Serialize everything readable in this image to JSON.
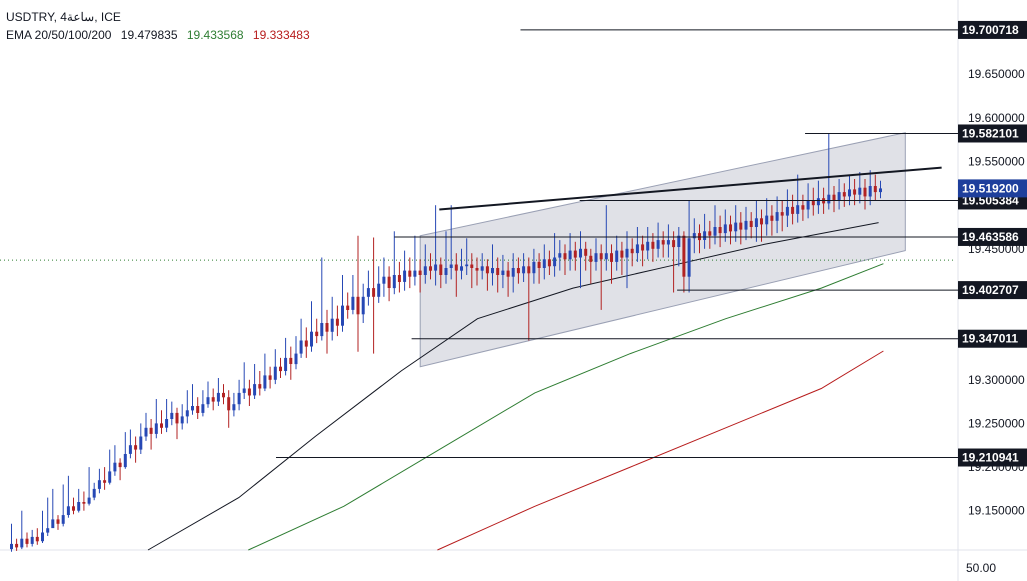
{
  "header": {
    "symbol_line": "USDTRY, 4ساعة, ICE",
    "ema_label": "EMA 20/50/100/200",
    "ema_values": [
      {
        "value": "19.479835",
        "color": "#131722"
      },
      {
        "value": "19.433568",
        "color": "#2e7d32"
      },
      {
        "value": "19.333483",
        "color": "#b71c1c"
      }
    ]
  },
  "bottom_axis": {
    "label": "50.00"
  },
  "chart_data": {
    "type": "candlestick",
    "symbol": "USDTRY",
    "timeframe": "4ساعة",
    "y_range": [
      19.105,
      19.735
    ],
    "y_ticks": [
      {
        "value": 19.65,
        "label": "19.650000"
      },
      {
        "value": 19.6,
        "label": "19.600000"
      },
      {
        "value": 19.55,
        "label": "19.550000"
      },
      {
        "value": 19.45,
        "label": "19.450000"
      },
      {
        "value": 19.3,
        "label": "19.300000"
      },
      {
        "value": 19.25,
        "label": "19.250000"
      },
      {
        "value": 19.2,
        "label": "19.200000"
      },
      {
        "value": 19.15,
        "label": "19.150000"
      }
    ],
    "horizontal_levels": [
      {
        "value": 19.700718,
        "label": "19.700718",
        "x_start_frac": 0.545
      },
      {
        "value": 19.582101,
        "label": "19.582101",
        "x_start_frac": 0.843
      },
      {
        "value": 19.505384,
        "label": "19.505384",
        "x_start_frac": 0.607
      },
      {
        "value": 19.463586,
        "label": "19.463586",
        "x_start_frac": 0.413
      },
      {
        "value": 19.402707,
        "label": "19.402707",
        "x_start_frac": 0.709
      },
      {
        "value": 19.347011,
        "label": "19.347011",
        "x_start_frac": 0.431
      },
      {
        "value": 19.210941,
        "label": "19.210941",
        "x_start_frac": 0.289
      }
    ],
    "current_price": {
      "value": 19.5192,
      "label": "19.519200",
      "color": "#1e3f9c"
    },
    "dotted_level": 19.437,
    "ema_series": [
      {
        "name": "EMA 20",
        "color": "#131722",
        "points": [
          [
            0.155,
            19.105
          ],
          [
            0.25,
            19.165
          ],
          [
            0.33,
            19.235
          ],
          [
            0.42,
            19.31
          ],
          [
            0.5,
            19.37
          ],
          [
            0.6,
            19.405
          ],
          [
            0.7,
            19.43
          ],
          [
            0.8,
            19.455
          ],
          [
            0.92,
            19.48
          ]
        ]
      },
      {
        "name": "EMA 50",
        "color": "#2e7d32",
        "points": [
          [
            0.26,
            19.105
          ],
          [
            0.36,
            19.155
          ],
          [
            0.46,
            19.22
          ],
          [
            0.56,
            19.285
          ],
          [
            0.66,
            19.33
          ],
          [
            0.76,
            19.37
          ],
          [
            0.86,
            19.405
          ],
          [
            0.925,
            19.433
          ]
        ]
      },
      {
        "name": "EMA 100",
        "color": "#b71c1c",
        "points": [
          [
            0.458,
            19.105
          ],
          [
            0.56,
            19.155
          ],
          [
            0.66,
            19.2
          ],
          [
            0.76,
            19.245
          ],
          [
            0.86,
            19.29
          ],
          [
            0.925,
            19.333
          ]
        ]
      }
    ],
    "channel": {
      "upper": [
        [
          0.44,
          19.465
        ],
        [
          0.948,
          19.583
        ]
      ],
      "lower": [
        [
          0.44,
          19.315
        ],
        [
          0.948,
          19.448
        ]
      ],
      "fill": "#c7c9d4"
    },
    "resistance_line": [
      [
        0.46,
        19.495
      ],
      [
        0.986,
        19.543
      ]
    ],
    "candles_up_color": "#2648b5",
    "candles_down_color": "#b22222",
    "candles": [
      [
        19.106,
        19.112,
        19.135,
        19.103
      ],
      [
        19.112,
        19.108,
        19.118,
        19.104
      ],
      [
        19.108,
        19.118,
        19.15,
        19.106
      ],
      [
        19.118,
        19.112,
        19.125,
        19.108
      ],
      [
        19.112,
        19.12,
        19.128,
        19.109
      ],
      [
        19.12,
        19.115,
        19.13,
        19.111
      ],
      [
        19.115,
        19.125,
        19.15,
        19.113
      ],
      [
        19.125,
        19.13,
        19.165,
        19.121
      ],
      [
        19.13,
        19.14,
        19.175,
        19.135
      ],
      [
        19.14,
        19.135,
        19.145,
        19.128
      ],
      [
        19.135,
        19.145,
        19.18,
        19.132
      ],
      [
        19.145,
        19.155,
        19.19,
        19.142
      ],
      [
        19.155,
        19.15,
        19.165,
        19.146
      ],
      [
        19.15,
        19.16,
        19.175,
        19.148
      ],
      [
        19.16,
        19.158,
        19.172,
        19.15
      ],
      [
        19.158,
        19.165,
        19.2,
        19.156
      ],
      [
        19.165,
        19.175,
        19.182,
        19.162
      ],
      [
        19.175,
        19.185,
        19.198,
        19.17
      ],
      [
        19.185,
        19.182,
        19.2,
        19.174
      ],
      [
        19.182,
        19.195,
        19.22,
        19.18
      ],
      [
        19.195,
        19.205,
        19.225,
        19.19
      ],
      [
        19.205,
        19.2,
        19.21,
        19.185
      ],
      [
        19.2,
        19.215,
        19.24,
        19.198
      ],
      [
        19.215,
        19.225,
        19.243,
        19.21
      ],
      [
        19.225,
        19.22,
        19.235,
        19.205
      ],
      [
        19.22,
        19.235,
        19.25,
        19.215
      ],
      [
        19.235,
        19.245,
        19.262,
        19.23
      ],
      [
        19.245,
        19.238,
        19.255,
        19.22
      ],
      [
        19.238,
        19.25,
        19.278,
        19.233
      ],
      [
        19.25,
        19.245,
        19.265,
        19.238
      ],
      [
        19.245,
        19.255,
        19.278,
        19.24
      ],
      [
        19.255,
        19.262,
        19.275,
        19.248
      ],
      [
        19.262,
        19.25,
        19.268,
        19.232
      ],
      [
        19.25,
        19.258,
        19.272,
        19.243
      ],
      [
        19.258,
        19.265,
        19.288,
        19.25
      ],
      [
        19.265,
        19.27,
        19.295,
        19.26
      ],
      [
        19.27,
        19.262,
        19.28,
        19.255
      ],
      [
        19.262,
        19.272,
        19.288,
        19.258
      ],
      [
        19.272,
        19.28,
        19.298,
        19.268
      ],
      [
        19.28,
        19.275,
        19.29,
        19.265
      ],
      [
        19.275,
        19.285,
        19.302,
        19.27
      ],
      [
        19.285,
        19.28,
        19.295,
        19.272
      ],
      [
        19.28,
        19.265,
        19.288,
        19.245
      ],
      [
        19.265,
        19.272,
        19.285,
        19.258
      ],
      [
        19.272,
        19.285,
        19.3,
        19.265
      ],
      [
        19.285,
        19.29,
        19.32,
        19.278
      ],
      [
        19.29,
        19.282,
        19.3,
        19.27
      ],
      [
        19.282,
        19.295,
        19.318,
        19.278
      ],
      [
        19.295,
        19.29,
        19.31,
        19.282
      ],
      [
        19.29,
        19.305,
        19.33,
        19.287
      ],
      [
        19.305,
        19.3,
        19.315,
        19.29
      ],
      [
        19.3,
        19.315,
        19.335,
        19.295
      ],
      [
        19.315,
        19.31,
        19.325,
        19.302
      ],
      [
        19.31,
        19.325,
        19.348,
        19.305
      ],
      [
        19.325,
        19.318,
        19.338,
        19.3
      ],
      [
        19.318,
        19.33,
        19.35,
        19.312
      ],
      [
        19.33,
        19.345,
        19.37,
        19.325
      ],
      [
        19.345,
        19.338,
        19.36,
        19.325
      ],
      [
        19.338,
        19.355,
        19.39,
        19.332
      ],
      [
        19.355,
        19.35,
        19.37,
        19.342
      ],
      [
        19.35,
        19.365,
        19.44,
        19.345
      ],
      [
        19.365,
        19.355,
        19.38,
        19.33
      ],
      [
        19.355,
        19.37,
        19.395,
        19.345
      ],
      [
        19.37,
        19.362,
        19.385,
        19.35
      ],
      [
        19.362,
        19.385,
        19.42,
        19.355
      ],
      [
        19.385,
        19.38,
        19.4,
        19.37
      ],
      [
        19.38,
        19.395,
        19.42,
        19.375
      ],
      [
        19.395,
        19.375,
        19.465,
        19.332
      ],
      [
        19.375,
        19.395,
        19.41,
        19.365
      ],
      [
        19.395,
        19.405,
        19.425,
        19.385
      ],
      [
        19.405,
        19.395,
        19.463,
        19.33
      ],
      [
        19.395,
        19.41,
        19.43,
        19.388
      ],
      [
        19.41,
        19.418,
        19.44,
        19.395
      ],
      [
        19.418,
        19.405,
        19.43,
        19.39
      ],
      [
        19.405,
        19.42,
        19.47,
        19.398
      ],
      [
        19.42,
        19.412,
        19.435,
        19.4
      ],
      [
        19.412,
        19.425,
        19.448,
        19.402
      ],
      [
        19.425,
        19.418,
        19.44,
        19.405
      ],
      [
        19.418,
        19.425,
        19.465,
        19.408
      ],
      [
        19.425,
        19.42,
        19.438,
        19.4
      ],
      [
        19.42,
        19.43,
        19.455,
        19.41
      ],
      [
        19.43,
        19.425,
        19.445,
        19.415
      ],
      [
        19.425,
        19.432,
        19.5,
        19.408
      ],
      [
        19.432,
        19.42,
        19.44,
        19.405
      ],
      [
        19.42,
        19.428,
        19.47,
        19.41
      ],
      [
        19.428,
        19.432,
        19.5,
        19.415
      ],
      [
        19.432,
        19.425,
        19.445,
        19.395
      ],
      [
        19.425,
        19.43,
        19.45,
        19.415
      ],
      [
        19.43,
        19.432,
        19.462,
        19.42
      ],
      [
        19.432,
        19.428,
        19.445,
        19.405
      ],
      [
        19.428,
        19.425,
        19.44,
        19.408
      ],
      [
        19.425,
        19.43,
        19.445,
        19.415
      ],
      [
        19.43,
        19.422,
        19.438,
        19.402
      ],
      [
        19.422,
        19.428,
        19.455,
        19.408
      ],
      [
        19.428,
        19.42,
        19.44,
        19.4
      ],
      [
        19.42,
        19.425,
        19.443,
        19.405
      ],
      [
        19.425,
        19.418,
        19.435,
        19.395
      ],
      [
        19.418,
        19.428,
        19.445,
        19.4
      ],
      [
        19.428,
        19.422,
        19.44,
        19.41
      ],
      [
        19.422,
        19.43,
        19.445,
        19.412
      ],
      [
        19.43,
        19.422,
        19.44,
        19.345
      ],
      [
        19.422,
        19.435,
        19.45,
        19.41
      ],
      [
        19.435,
        19.428,
        19.445,
        19.41
      ],
      [
        19.428,
        19.438,
        19.455,
        19.415
      ],
      [
        19.438,
        19.43,
        19.448,
        19.42
      ],
      [
        19.43,
        19.44,
        19.468,
        19.418
      ],
      [
        19.44,
        19.445,
        19.46,
        19.425
      ],
      [
        19.445,
        19.438,
        19.455,
        19.42
      ],
      [
        19.438,
        19.448,
        19.468,
        19.425
      ],
      [
        19.448,
        19.44,
        19.458,
        19.425
      ],
      [
        19.44,
        19.45,
        19.47,
        19.405
      ],
      [
        19.45,
        19.442,
        19.458,
        19.425
      ],
      [
        19.442,
        19.435,
        19.45,
        19.41
      ],
      [
        19.435,
        19.445,
        19.462,
        19.425
      ],
      [
        19.445,
        19.438,
        19.455,
        19.38
      ],
      [
        19.438,
        19.445,
        19.5,
        19.425
      ],
      [
        19.445,
        19.435,
        19.455,
        19.41
      ],
      [
        19.435,
        19.448,
        19.465,
        19.425
      ],
      [
        19.448,
        19.44,
        19.458,
        19.42
      ],
      [
        19.44,
        19.45,
        19.47,
        19.405
      ],
      [
        19.45,
        19.445,
        19.462,
        19.43
      ],
      [
        19.445,
        19.455,
        19.475,
        19.435
      ],
      [
        19.455,
        19.448,
        19.465,
        19.43
      ],
      [
        19.448,
        19.458,
        19.475,
        19.438
      ],
      [
        19.458,
        19.45,
        19.468,
        19.435
      ],
      [
        19.45,
        19.46,
        19.48,
        19.44
      ],
      [
        19.46,
        19.455,
        19.47,
        19.44
      ],
      [
        19.455,
        19.46,
        19.478,
        19.44
      ],
      [
        19.46,
        19.452,
        19.47,
        19.4
      ],
      [
        19.452,
        19.465,
        19.475,
        19.43
      ],
      [
        19.465,
        19.418,
        19.47,
        19.4
      ],
      [
        19.418,
        19.462,
        19.505,
        19.4
      ],
      [
        19.462,
        19.468,
        19.485,
        19.445
      ],
      [
        19.468,
        19.46,
        19.478,
        19.445
      ],
      [
        19.46,
        19.47,
        19.49,
        19.45
      ],
      [
        19.47,
        19.465,
        19.482,
        19.45
      ],
      [
        19.465,
        19.475,
        19.5,
        19.455
      ],
      [
        19.475,
        19.468,
        19.488,
        19.452
      ],
      [
        19.468,
        19.478,
        19.495,
        19.458
      ],
      [
        19.478,
        19.47,
        19.488,
        19.455
      ],
      [
        19.47,
        19.48,
        19.5,
        19.458
      ],
      [
        19.48,
        19.472,
        19.492,
        19.455
      ],
      [
        19.472,
        19.482,
        19.498,
        19.46
      ],
      [
        19.482,
        19.475,
        19.492,
        19.462
      ],
      [
        19.475,
        19.485,
        19.505,
        19.458
      ],
      [
        19.485,
        19.478,
        19.495,
        19.458
      ],
      [
        19.478,
        19.488,
        19.508,
        19.465
      ],
      [
        19.488,
        19.482,
        19.5,
        19.465
      ],
      [
        19.482,
        19.492,
        19.51,
        19.468
      ],
      [
        19.492,
        19.488,
        19.505,
        19.47
      ],
      [
        19.488,
        19.498,
        19.518,
        19.475
      ],
      [
        19.498,
        19.49,
        19.512,
        19.478
      ],
      [
        19.49,
        19.5,
        19.535,
        19.48
      ],
      [
        19.5,
        19.495,
        19.512,
        19.482
      ],
      [
        19.495,
        19.505,
        19.525,
        19.485
      ],
      [
        19.505,
        19.5,
        19.52,
        19.488
      ],
      [
        19.5,
        19.508,
        19.528,
        19.49
      ],
      [
        19.508,
        19.502,
        19.52,
        19.49
      ],
      [
        19.502,
        19.512,
        19.582,
        19.495
      ],
      [
        19.512,
        19.505,
        19.522,
        19.492
      ],
      [
        19.505,
        19.515,
        19.53,
        19.495
      ],
      [
        19.515,
        19.51,
        19.525,
        19.498
      ],
      [
        19.51,
        19.518,
        19.535,
        19.5
      ],
      [
        19.518,
        19.512,
        19.53,
        19.5
      ],
      [
        19.512,
        19.52,
        19.538,
        19.502
      ],
      [
        19.52,
        19.51,
        19.53,
        19.495
      ],
      [
        19.51,
        19.522,
        19.54,
        19.5
      ],
      [
        19.522,
        19.515,
        19.535,
        19.505
      ],
      [
        19.515,
        19.5192,
        19.528,
        19.508
      ]
    ]
  }
}
